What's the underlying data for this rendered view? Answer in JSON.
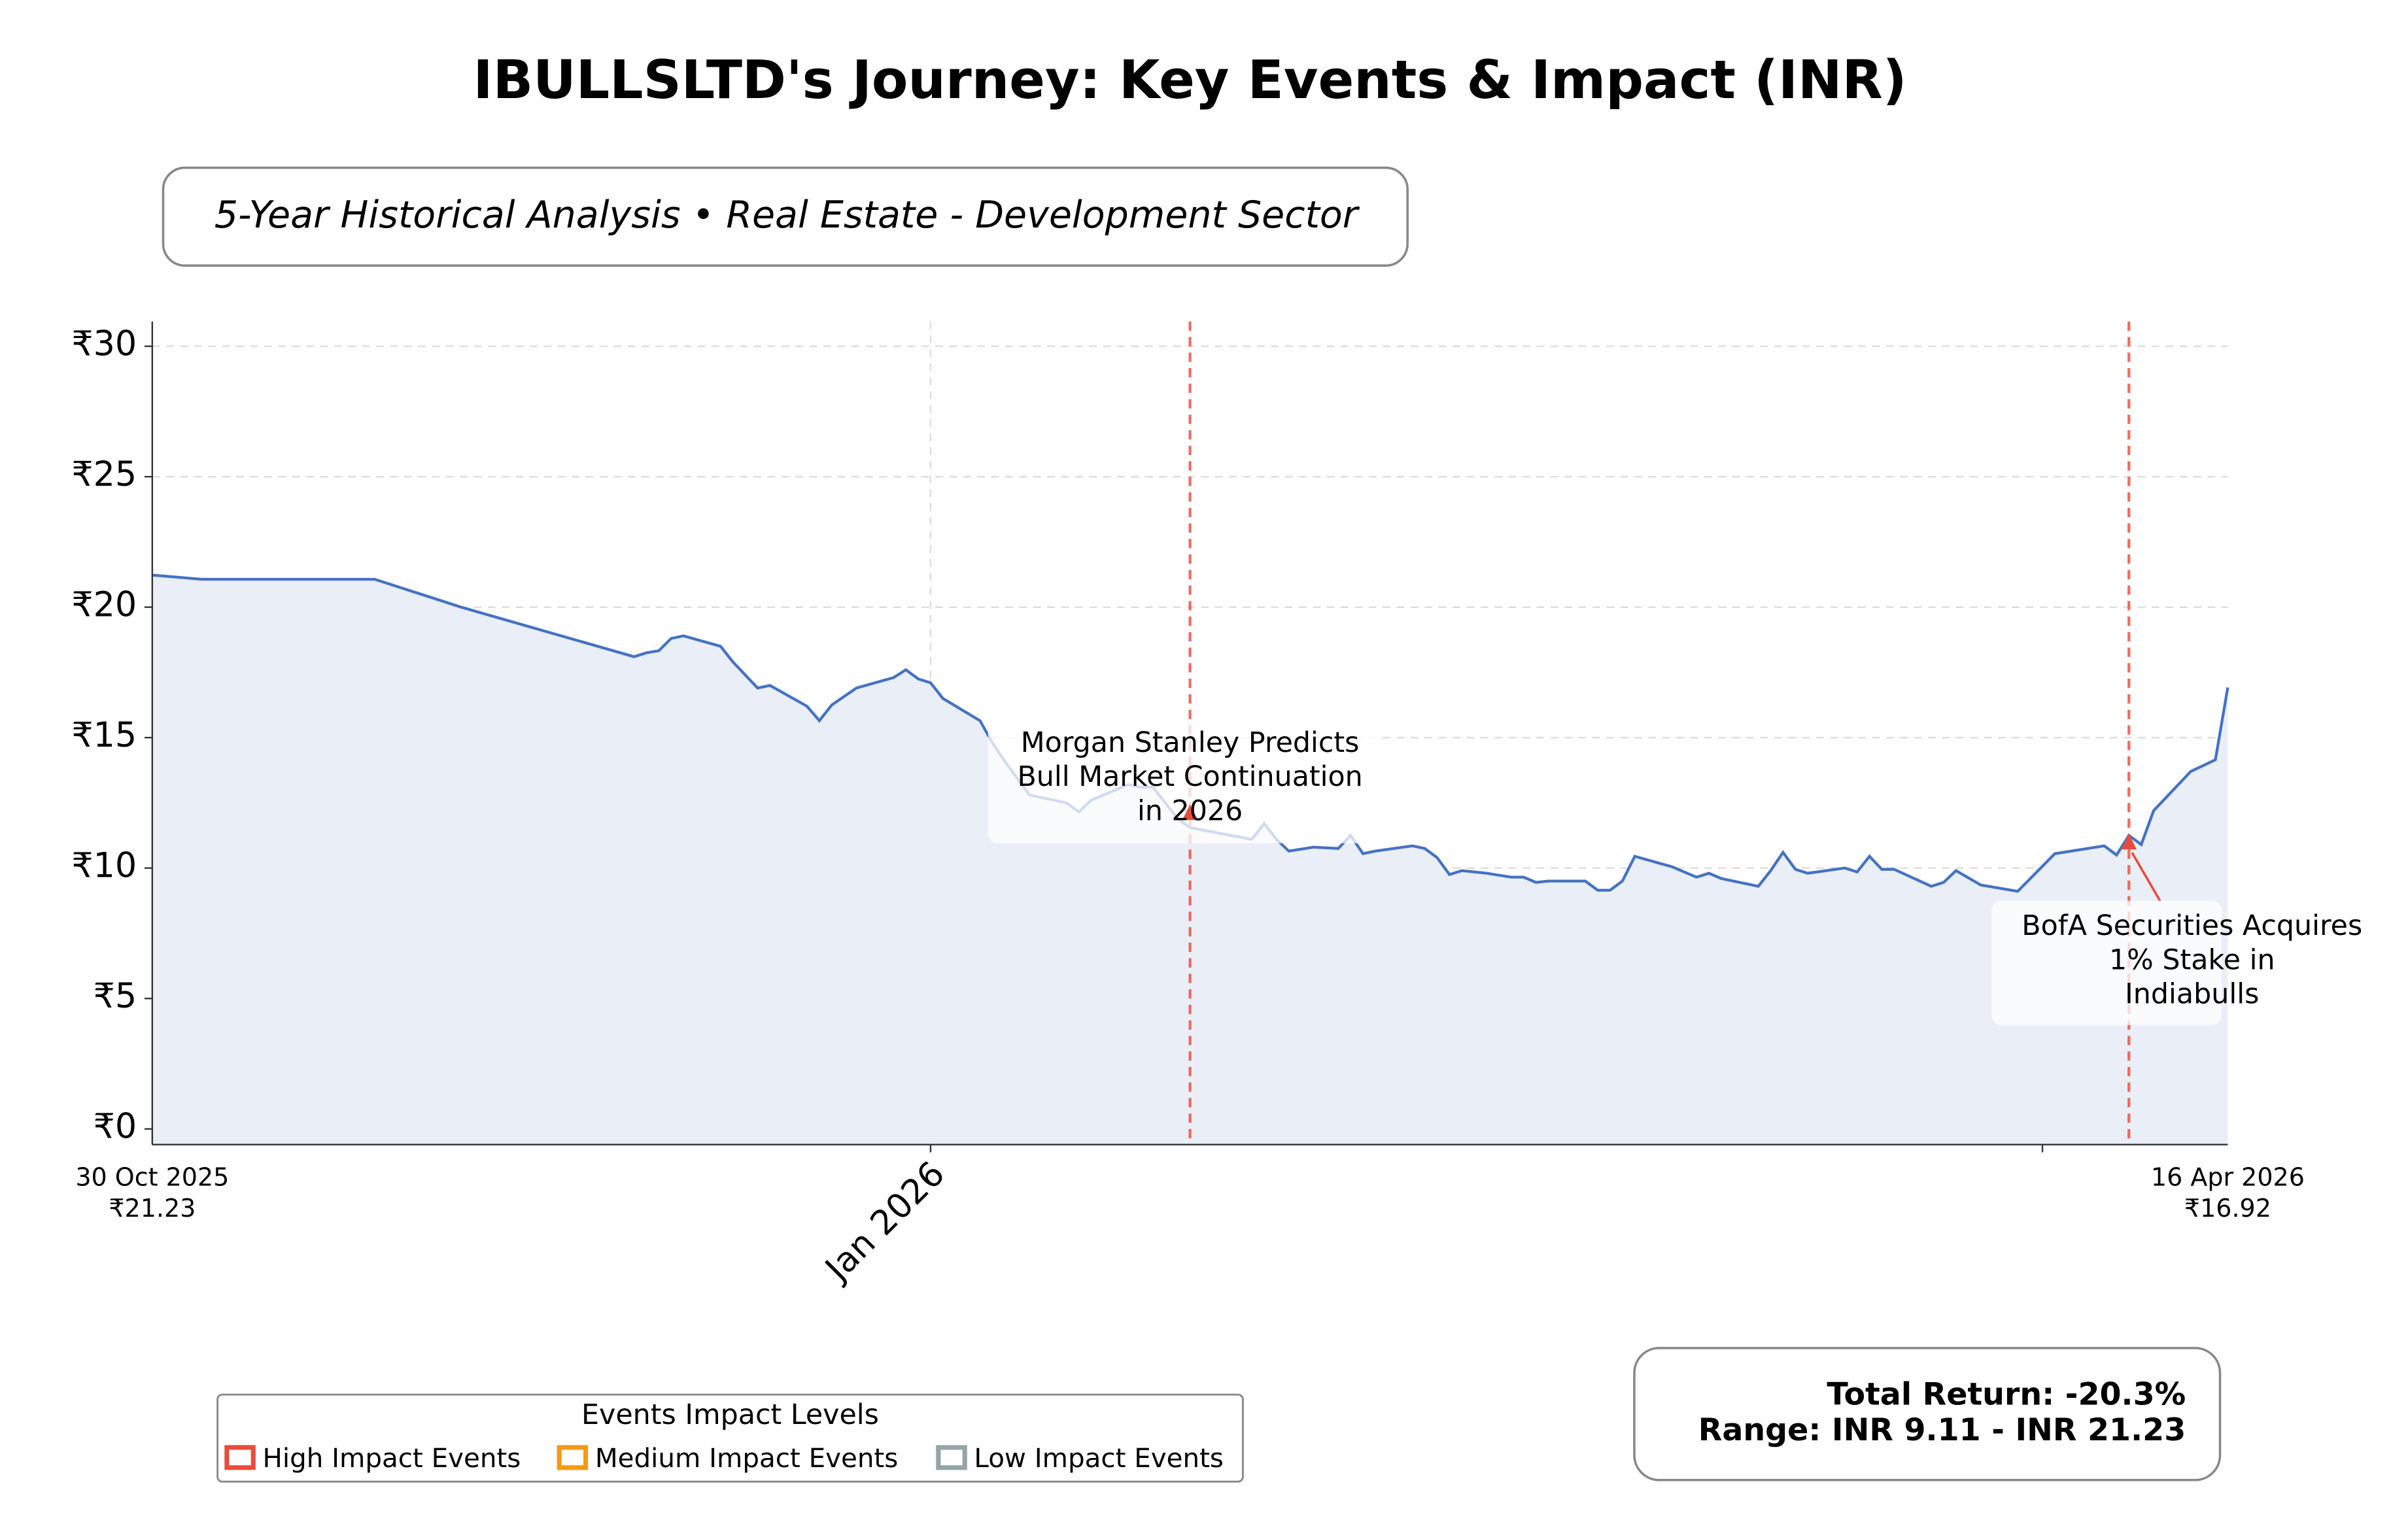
{
  "chart_data": {
    "type": "line",
    "title": "IBULLSLTD's Journey: Key Events & Impact (INR)",
    "subtitle": "5-Year Historical Analysis • Real Estate - Development Sector",
    "x": [
      "2025-10-30",
      "2025-11-03",
      "2025-11-17",
      "2025-11-24",
      "2025-12-08",
      "2025-12-09",
      "2025-12-10",
      "2025-12-11",
      "2025-12-12",
      "2025-12-15",
      "2025-12-16",
      "2025-12-18",
      "2025-12-19",
      "2025-12-22",
      "2025-12-23",
      "2025-12-24",
      "2025-12-26",
      "2025-12-29",
      "2025-12-30",
      "2025-12-31",
      "2026-01-01",
      "2026-01-02",
      "2026-01-05",
      "2026-01-06",
      "2026-01-07",
      "2026-01-09",
      "2026-01-12",
      "2026-01-13",
      "2026-01-14",
      "2026-01-17",
      "2026-01-18",
      "2026-01-19",
      "2026-01-20",
      "2026-01-21",
      "2026-01-22",
      "2026-01-27",
      "2026-01-28",
      "2026-01-29",
      "2026-01-30",
      "2026-02-01",
      "2026-02-03",
      "2026-02-04",
      "2026-02-05",
      "2026-02-06",
      "2026-02-09",
      "2026-02-10",
      "2026-02-11",
      "2026-02-12",
      "2026-02-13",
      "2026-02-15",
      "2026-02-17",
      "2026-02-18",
      "2026-02-19",
      "2026-02-20",
      "2026-02-23",
      "2026-02-24",
      "2026-02-25",
      "2026-02-26",
      "2026-02-27",
      "2026-03-02",
      "2026-03-04",
      "2026-03-05",
      "2026-03-06",
      "2026-03-09",
      "2026-03-10",
      "2026-03-11",
      "2026-03-12",
      "2026-03-13",
      "2026-03-16",
      "2026-03-17",
      "2026-03-18",
      "2026-03-19",
      "2026-03-20",
      "2026-03-23",
      "2026-03-24",
      "2026-03-25",
      "2026-03-27",
      "2026-03-30",
      "2026-04-02",
      "2026-04-06",
      "2026-04-07",
      "2026-04-08",
      "2026-04-09",
      "2026-04-10",
      "2026-04-13",
      "2026-04-15",
      "2026-04-16"
    ],
    "series": [
      {
        "name": "IBULLSLTD",
        "color": "#4472c4",
        "fill": "#eaeef7",
        "values": [
          21.23,
          21.07,
          21.07,
          20.0,
          18.1,
          18.25,
          18.33,
          18.8,
          18.9,
          18.5,
          17.9,
          16.9,
          17.0,
          16.2,
          15.65,
          16.25,
          16.9,
          17.3,
          17.6,
          17.25,
          17.1,
          16.5,
          15.65,
          14.8,
          14.1,
          12.8,
          12.5,
          12.15,
          12.6,
          13.2,
          13.1,
          13.1,
          12.5,
          11.9,
          11.55,
          11.1,
          11.7,
          11.1,
          10.65,
          10.8,
          10.75,
          11.25,
          10.55,
          10.65,
          10.85,
          10.75,
          10.4,
          9.75,
          9.9,
          9.8,
          9.65,
          9.65,
          9.45,
          9.5,
          9.5,
          9.15,
          9.15,
          9.5,
          10.45,
          10.05,
          9.65,
          9.8,
          9.6,
          9.3,
          9.9,
          10.6,
          9.95,
          9.8,
          10.0,
          9.85,
          10.45,
          9.95,
          9.95,
          9.3,
          9.45,
          9.9,
          9.35,
          9.11,
          10.55,
          10.85,
          10.5,
          11.25,
          10.9,
          12.2,
          13.7,
          14.15,
          16.92
        ]
      }
    ],
    "xlim": [
      "2025-10-30",
      "2026-04-16"
    ],
    "xticks": [
      {
        "value": "2025-10-30",
        "label": "30 Oct 2025",
        "sublabel": "₹21.23"
      },
      {
        "value": "2026-01-01",
        "label": "Jan 2026"
      },
      {
        "value": "2026-04-01",
        "label": null
      },
      {
        "value": "2026-04-16",
        "label": "16 Apr 2026",
        "sublabel": "₹16.92"
      }
    ],
    "ylim": [
      -0.6,
      30.95
    ],
    "yticks": [
      {
        "value": 0,
        "label": "₹0"
      },
      {
        "value": 5,
        "label": "₹5"
      },
      {
        "value": 10,
        "label": "₹10"
      },
      {
        "value": 15,
        "label": "₹15"
      },
      {
        "value": 20,
        "label": "₹20"
      },
      {
        "value": 25,
        "label": "₹25"
      },
      {
        "value": 30,
        "label": "₹30"
      }
    ],
    "grid": true,
    "events": [
      {
        "date": "2026-01-22",
        "price": 12.08,
        "impact": "high",
        "label": "Morgan Stanley Predicts\nBull Market Continuation\nin 2026"
      },
      {
        "date": "2026-04-08",
        "price": 10.95,
        "impact": "high",
        "label": "BofA Securities Acquires\n1% Stake in\nIndiabulls"
      }
    ],
    "legend": {
      "title": "Events Impact Levels",
      "position": "lower left",
      "entries": [
        {
          "impact": "high",
          "label": "High Impact Events",
          "color": "#e74c3c"
        },
        {
          "impact": "medium",
          "label": "Medium Impact Events",
          "color": "#f39c12"
        },
        {
          "impact": "low",
          "label": "Low Impact Events",
          "color": "#95a5a6"
        }
      ]
    },
    "stats": [
      "Total Return: -20.3%",
      "Range: INR 9.11 - INR 21.23"
    ]
  }
}
